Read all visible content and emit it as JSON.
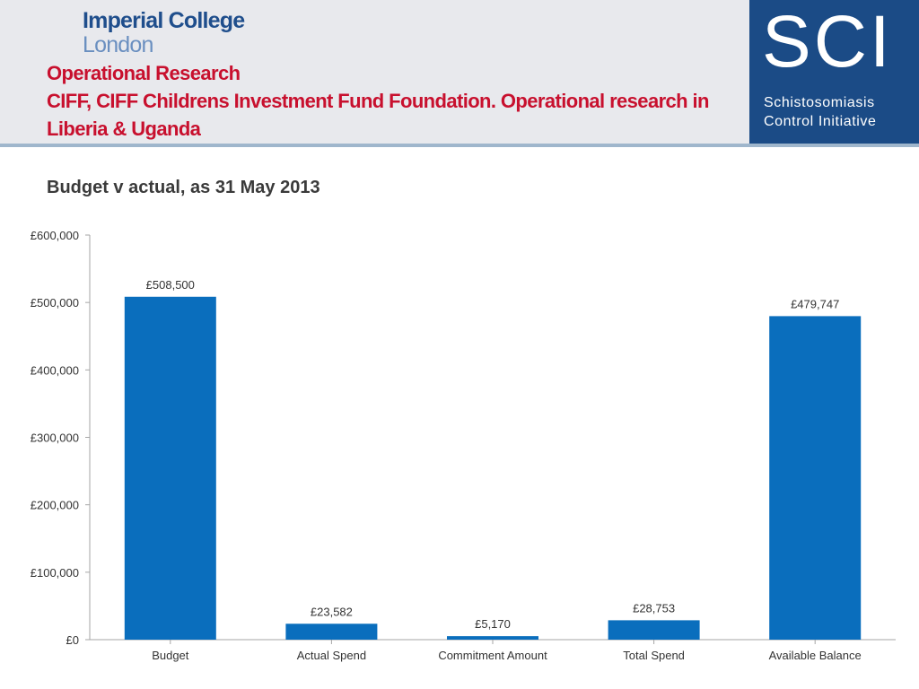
{
  "header": {
    "logo_line1": "Imperial College",
    "logo_line2": "London",
    "title_line1": "Operational Research",
    "title_line2": "CIFF,   CIFF Childrens Investment Fund Foundation. Operational research in",
    "title_line3": "Liberia & Uganda"
  },
  "sci_logo": {
    "acronym": "SCI",
    "line1": "Schistosomiasis",
    "line2": "Control Initiative"
  },
  "colors": {
    "bar": "#0a6ebd",
    "title_red": "#c8102e",
    "sci_blue": "#1b4b86"
  },
  "chart_data": {
    "type": "bar",
    "title": "Budget v actual, as 31 May 2013",
    "categories": [
      "Budget",
      "Actual Spend",
      "Commitment Amount",
      "Total Spend",
      "Available Balance"
    ],
    "values": [
      508500,
      23582,
      5170,
      28753,
      479747
    ],
    "data_labels": [
      "£508,500",
      "£23,582",
      "£5,170",
      "£28,753",
      "£479,747"
    ],
    "y_ticks": [
      "£0",
      "£100,000",
      "£200,000",
      "£300,000",
      "£400,000",
      "£500,000",
      "£600,000"
    ],
    "ylim": [
      0,
      600000
    ],
    "grid": false,
    "legend": "none"
  }
}
